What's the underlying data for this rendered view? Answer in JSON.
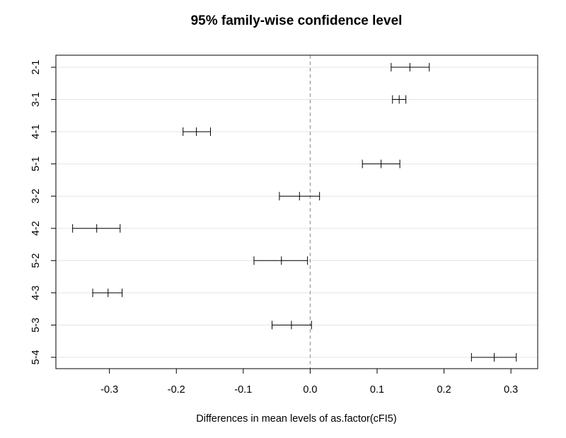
{
  "chart_data": {
    "type": "interval",
    "title": "95% family-wise confidence level",
    "xlabel": "Differences in mean levels of as.factor(cFI5)",
    "ylabel": "",
    "xlim": [
      -0.38,
      0.34
    ],
    "xticks": [
      -0.3,
      -0.2,
      -0.1,
      0.0,
      0.1,
      0.2,
      0.3
    ],
    "xtick_labels": [
      "-0.3",
      "-0.2",
      "-0.1",
      "0.0",
      "0.1",
      "0.2",
      "0.3"
    ],
    "reference_line": 0.0,
    "grid": "horizontal",
    "comparisons": [
      {
        "label": "2-1",
        "lower": 0.121,
        "estimate": 0.149,
        "upper": 0.178
      },
      {
        "label": "3-1",
        "lower": 0.123,
        "estimate": 0.133,
        "upper": 0.143
      },
      {
        "label": "4-1",
        "lower": -0.19,
        "estimate": -0.17,
        "upper": -0.149
      },
      {
        "label": "5-1",
        "lower": 0.078,
        "estimate": 0.106,
        "upper": 0.134
      },
      {
        "label": "3-2",
        "lower": -0.046,
        "estimate": -0.016,
        "upper": 0.014
      },
      {
        "label": "4-2",
        "lower": -0.355,
        "estimate": -0.319,
        "upper": -0.284
      },
      {
        "label": "5-2",
        "lower": -0.084,
        "estimate": -0.043,
        "upper": -0.004
      },
      {
        "label": "4-3",
        "lower": -0.325,
        "estimate": -0.302,
        "upper": -0.281
      },
      {
        "label": "5-3",
        "lower": -0.057,
        "estimate": -0.028,
        "upper": 0.002
      },
      {
        "label": "5-4",
        "lower": 0.241,
        "estimate": 0.275,
        "upper": 0.308
      }
    ]
  }
}
